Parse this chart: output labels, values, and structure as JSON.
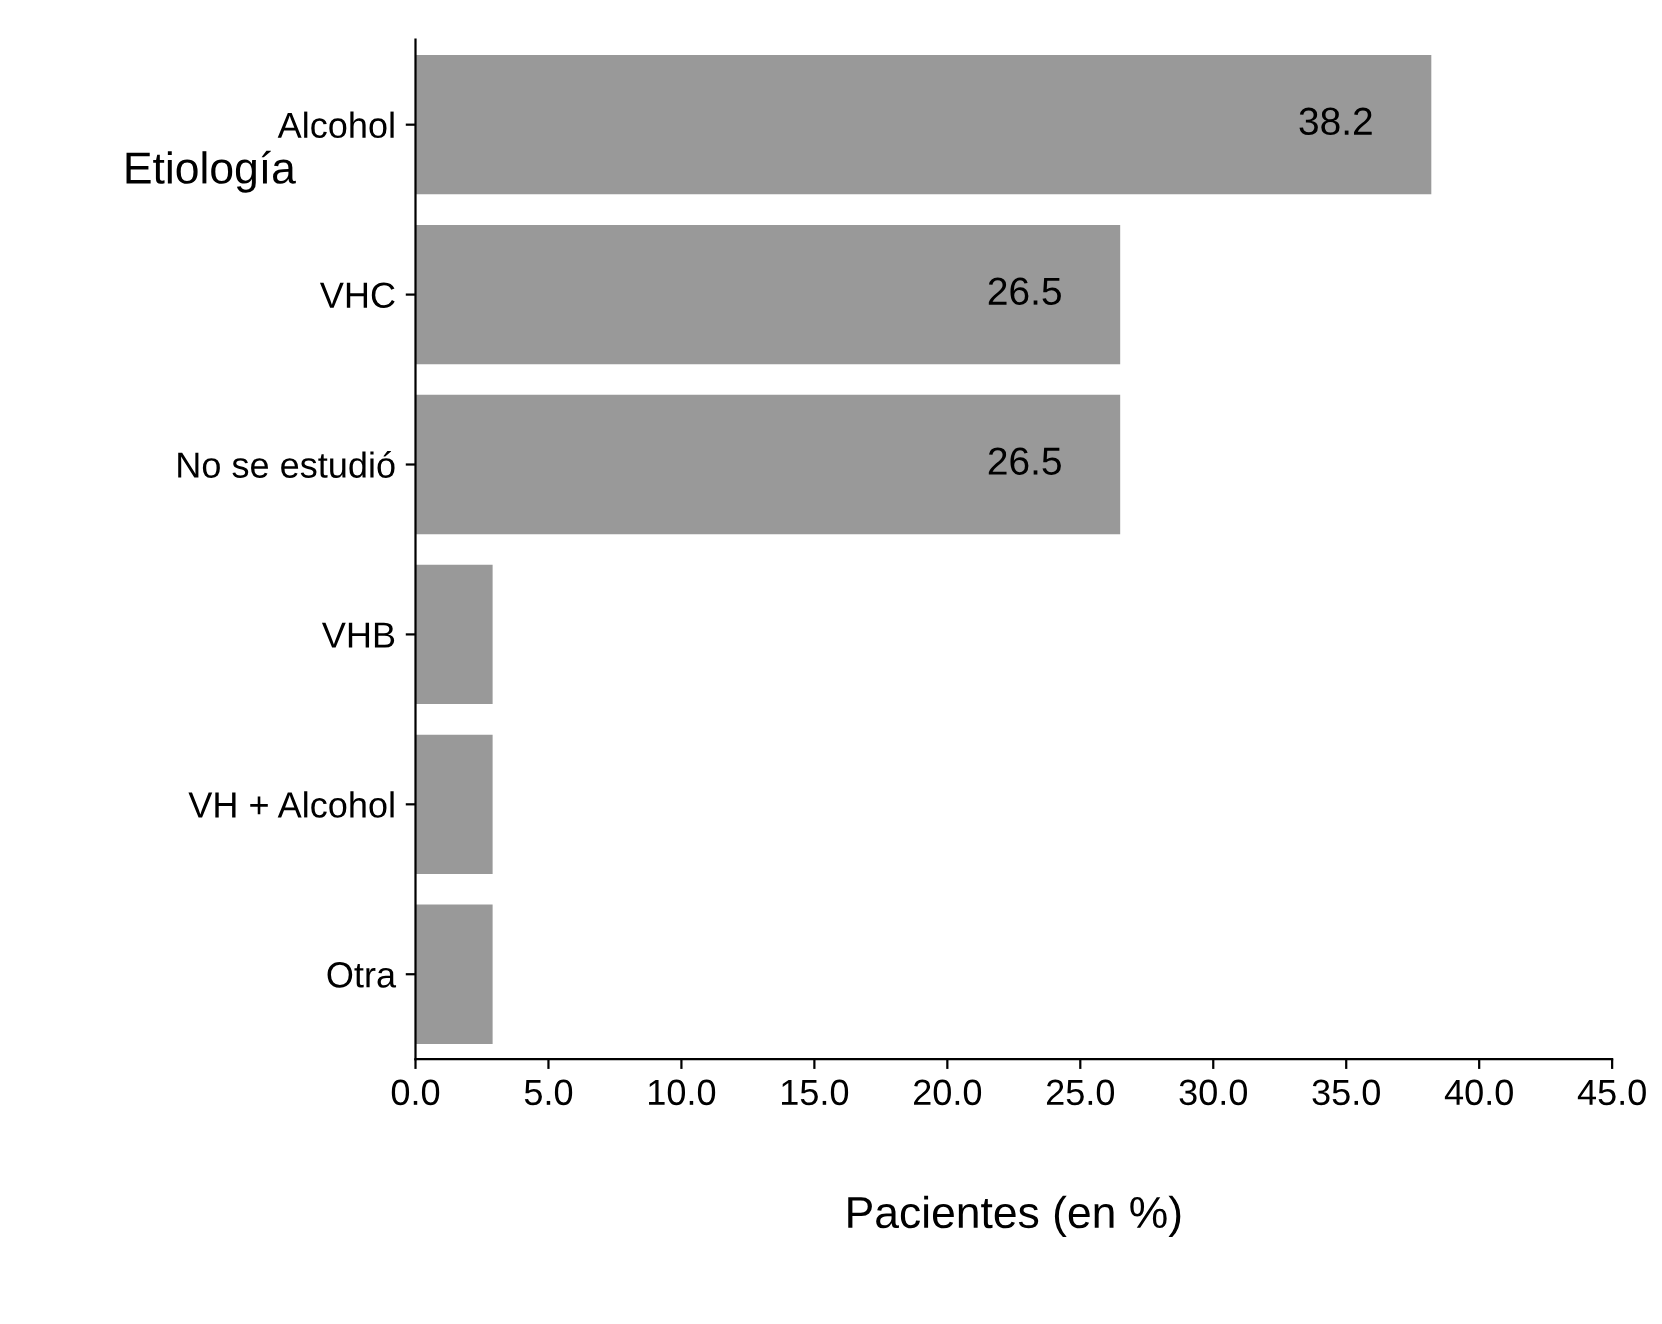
{
  "chart_data": {
    "type": "bar",
    "orientation": "horizontal",
    "xlabel": "Pacientes (en %)",
    "ylabel": "Etiología",
    "categories": [
      "Alcohol",
      "VHC",
      "No se estudió",
      "VHB",
      "VH + Alcohol",
      "Otra"
    ],
    "values": [
      38.2,
      26.5,
      26.5,
      2.9,
      2.9,
      2.9
    ],
    "value_labels": [
      "38.2",
      "26.5",
      "26.5",
      null,
      null,
      null
    ],
    "color": "#999999",
    "xlim": [
      0,
      45
    ],
    "xticks": [
      {
        "value": 0,
        "label": "0.0"
      },
      {
        "value": 5,
        "label": "5.0"
      },
      {
        "value": 10,
        "label": "10.0"
      },
      {
        "value": 15,
        "label": "15.0"
      },
      {
        "value": 20,
        "label": "20.0"
      },
      {
        "value": 25,
        "label": "25.0"
      },
      {
        "value": 30,
        "label": "30.0"
      },
      {
        "value": 35,
        "label": "35.0"
      },
      {
        "value": 40,
        "label": "40.0"
      },
      {
        "value": 45,
        "label": "45.0"
      }
    ],
    "grid": false
  }
}
